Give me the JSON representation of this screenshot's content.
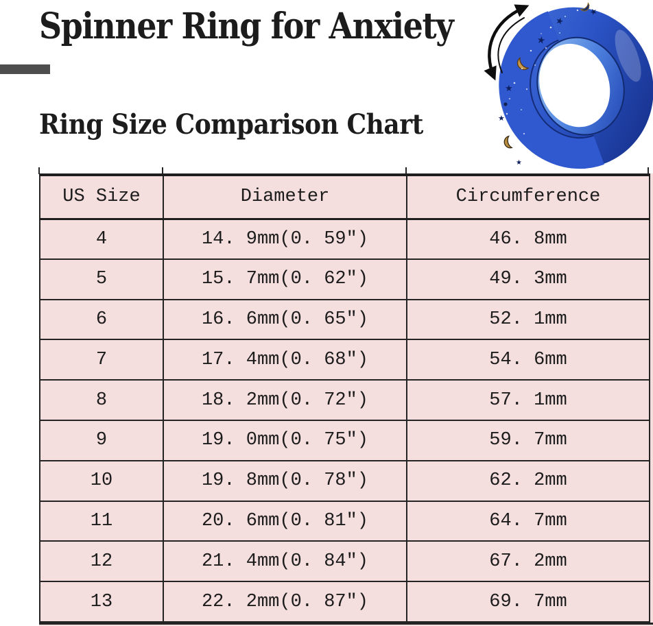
{
  "header": {
    "title": "Spinner Ring for Anxiety",
    "subtitle": "Ring Size Comparison Chart"
  },
  "ring_image": {
    "description": "blue glitter spinner ring with moon and star cutouts and rotation arrow",
    "band_color": "#2e57cf",
    "dark_color": "#142c86",
    "inner_wall_color": "#9cc6f2",
    "moon_gold_color": "#c99a4e",
    "arrow_color": "#0e0e0e"
  },
  "colors": {
    "page_bg": "#ffffff",
    "table_bg": "#f5dede",
    "table_border": "#242424",
    "text": "#1c1c1c",
    "accent_bar": "#4d4d4d"
  },
  "chart_data": {
    "type": "table",
    "title": "Ring Size Comparison Chart",
    "columns": [
      "US Size",
      "Diameter",
      "Circumference"
    ],
    "rows": [
      [
        "4",
        "14. 9mm(0. 59″)",
        "46. 8mm"
      ],
      [
        "5",
        "15. 7mm(0. 62″)",
        "49. 3mm"
      ],
      [
        "6",
        "16. 6mm(0. 65″)",
        "52. 1mm"
      ],
      [
        "7",
        "17. 4mm(0. 68″)",
        "54. 6mm"
      ],
      [
        "8",
        "18. 2mm(0. 72″)",
        "57. 1mm"
      ],
      [
        "9",
        "19. 0mm(0. 75″)",
        "59. 7mm"
      ],
      [
        "10",
        "19. 8mm(0. 78″)",
        "62. 2mm"
      ],
      [
        "11",
        "20. 6mm(0. 81″)",
        "64. 7mm"
      ],
      [
        "12",
        "21. 4mm(0. 84″)",
        "67. 2mm"
      ],
      [
        "13",
        "22. 2mm(0. 87″)",
        "69. 7mm"
      ]
    ]
  }
}
